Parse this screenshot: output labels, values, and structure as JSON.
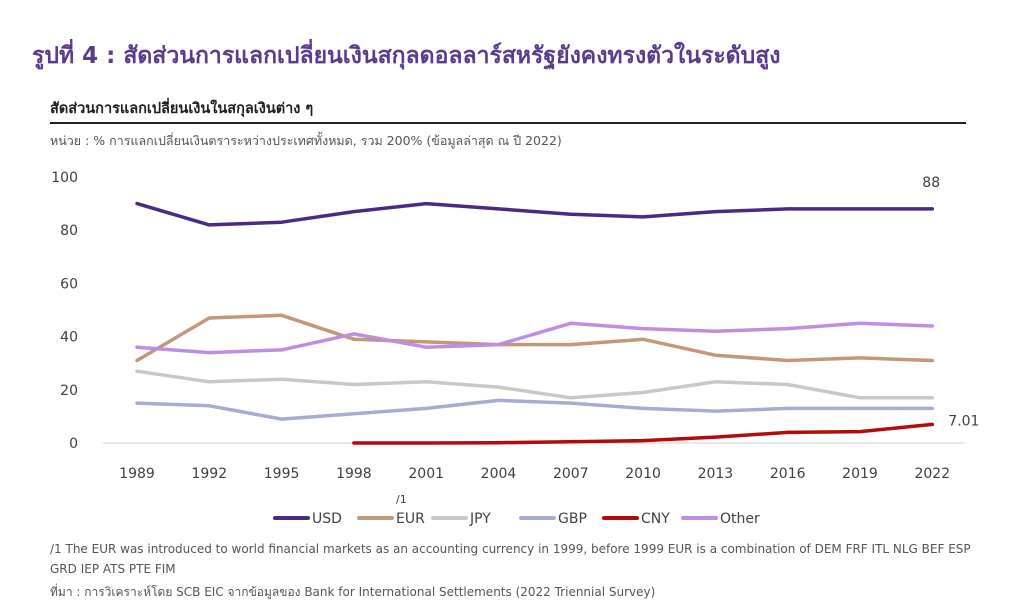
{
  "header": {
    "title": "รูปที่ 4 : สัดส่วนการแลกเปลี่ยนเงินสกุลดอลลาร์สหรัฐยังคงทรงตัวในระดับสูง",
    "subtitle": "สัดส่วนการแลกเปลี่ยนเงินในสกุลเงินต่าง ๆ",
    "unit_note": "หน่วย : % การแลกเปลี่ยนเงินตราระหว่างประเทศทั้งหมด, รวม 200% (ข้อมูลล่าสุด ณ ปี 2022)"
  },
  "chart_data": {
    "type": "line",
    "categories": [
      "1989",
      "1992",
      "1995",
      "1998",
      "2001",
      "2004",
      "2007",
      "2010",
      "2013",
      "2016",
      "2019",
      "2022"
    ],
    "ylim": [
      0,
      100
    ],
    "yticks": [
      "0",
      "20",
      "40",
      "60",
      "80",
      "100"
    ],
    "grid": false,
    "legend_position": "bottom",
    "series": [
      {
        "name": "USD",
        "color": "#4b2a84",
        "values": [
          90,
          82,
          83,
          87,
          90,
          88,
          86,
          85,
          87,
          88,
          88,
          88
        ]
      },
      {
        "name": "EUR",
        "marker": "/1",
        "color": "#c4967a",
        "values": [
          31,
          47,
          48,
          39,
          38,
          37,
          37,
          39,
          33,
          31,
          32,
          31
        ]
      },
      {
        "name": "JPY",
        "color": "#c8c8c8",
        "values": [
          27,
          23,
          24,
          22,
          23,
          21,
          17,
          19,
          23,
          22,
          17,
          17
        ]
      },
      {
        "name": "GBP",
        "color": "#a7acd4",
        "values": [
          15,
          14,
          9,
          11,
          13,
          16,
          15,
          13,
          12,
          13,
          13,
          13
        ]
      },
      {
        "name": "CNY",
        "color": "#b30b0b",
        "values": [
          null,
          null,
          null,
          0,
          0,
          0.1,
          0.5,
          0.9,
          2.2,
          4,
          4.3,
          7.01
        ]
      },
      {
        "name": "Other",
        "color": "#c08ee0",
        "values": [
          36,
          34,
          35,
          41,
          36,
          37,
          45,
          43,
          42,
          43,
          45,
          44
        ]
      }
    ],
    "annotations": [
      {
        "series": "USD",
        "category": "2022",
        "text": "88"
      },
      {
        "series": "CNY",
        "category": "2022",
        "text": "7.01"
      }
    ]
  },
  "footnote": "/1 The EUR was introduced to world financial markets as an accounting currency in 1999, before 1999 EUR is a combination of DEM FRF ITL NLG BEF ESP GRD IEP ATS PTE FIM",
  "source": "ที่มา : การวิเคราะห์โดย SCB EIC จากข้อมูลของ Bank for International Settlements (2022 Triennial Survey)"
}
